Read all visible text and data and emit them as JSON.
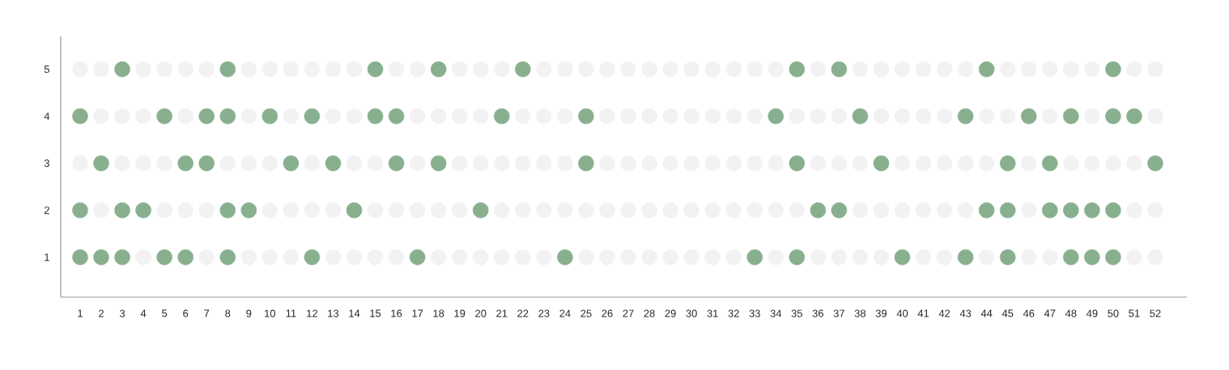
{
  "chart_data": {
    "type": "scatter",
    "marker": "circle",
    "grid": false,
    "xlim": [
      0.08,
      53.5
    ],
    "ylim": [
      0.15,
      5.7
    ],
    "xticks": [
      1,
      2,
      3,
      4,
      5,
      6,
      7,
      8,
      9,
      10,
      11,
      12,
      13,
      14,
      15,
      16,
      17,
      18,
      19,
      20,
      21,
      22,
      23,
      24,
      25,
      26,
      27,
      28,
      29,
      30,
      31,
      32,
      33,
      34,
      35,
      36,
      37,
      38,
      39,
      40,
      41,
      42,
      43,
      44,
      45,
      46,
      47,
      48,
      49,
      50,
      51,
      52
    ],
    "yticks": [
      1,
      2,
      3,
      4,
      5
    ],
    "series": [
      {
        "color": "#88b08e",
        "x": [
          3,
          8,
          15,
          18,
          22,
          35,
          37,
          44,
          50,
          1,
          5,
          7,
          8,
          10,
          12,
          15,
          16,
          21,
          25,
          34,
          38,
          43,
          46,
          48,
          50,
          51,
          2,
          6,
          7,
          11,
          13,
          16,
          18,
          25,
          35,
          39,
          45,
          47,
          52,
          1,
          3,
          4,
          8,
          9,
          14,
          20,
          36,
          37,
          44,
          45,
          47,
          48,
          49,
          50,
          1,
          2,
          3,
          5,
          6,
          8,
          12,
          17,
          24,
          33,
          35,
          40,
          43,
          45,
          48,
          49,
          50
        ],
        "values": [
          5,
          5,
          5,
          5,
          5,
          5,
          5,
          5,
          5,
          4,
          4,
          4,
          4,
          4,
          4,
          4,
          4,
          4,
          4,
          4,
          4,
          4,
          4,
          4,
          4,
          4,
          3,
          3,
          3,
          3,
          3,
          3,
          3,
          3,
          3,
          3,
          3,
          3,
          3,
          2,
          2,
          2,
          2,
          2,
          2,
          2,
          2,
          2,
          2,
          2,
          2,
          2,
          2,
          2,
          1,
          1,
          1,
          1,
          1,
          1,
          1,
          1,
          1,
          1,
          1,
          1,
          1,
          1,
          1,
          1,
          1
        ]
      },
      {
        "color": "#f2f2f2",
        "x": [
          4,
          7,
          9,
          10,
          11,
          13,
          14,
          15,
          16,
          18,
          19,
          20,
          21,
          22,
          23,
          25,
          26,
          27,
          28,
          29,
          30,
          31,
          32,
          34,
          36,
          37,
          38,
          39,
          41,
          42,
          44,
          46,
          47,
          51,
          52,
          2,
          5,
          6,
          7,
          10,
          11,
          12,
          13,
          15,
          16,
          17,
          18,
          19,
          21,
          22,
          23,
          24,
          25,
          26,
          27,
          28,
          29,
          30,
          31,
          32,
          33,
          34,
          35,
          38,
          39,
          40,
          41,
          42,
          43,
          46,
          51,
          52,
          1,
          3,
          4,
          5,
          8,
          9,
          10,
          12,
          14,
          15,
          17,
          19,
          20,
          21,
          22,
          23,
          24,
          26,
          27,
          28,
          29,
          30,
          31,
          32,
          33,
          34,
          36,
          37,
          38,
          40,
          41,
          42,
          43,
          44,
          46,
          48,
          49,
          50,
          51,
          2,
          3,
          4,
          6,
          9,
          11,
          13,
          14,
          17,
          18,
          19,
          20,
          22,
          23,
          24,
          26,
          27,
          28,
          29,
          30,
          31,
          32,
          33,
          35,
          36,
          37,
          39,
          40,
          41,
          42,
          44,
          45,
          47,
          49,
          52,
          1,
          2,
          4,
          5,
          6,
          7,
          9,
          10,
          11,
          12,
          13,
          14,
          16,
          17,
          19,
          20,
          21,
          23,
          24,
          25,
          26,
          27,
          28,
          29,
          30,
          31,
          32,
          33,
          34,
          36,
          38,
          39,
          40,
          41,
          42,
          43,
          45,
          46,
          47,
          48,
          49,
          51,
          52
        ],
        "values": [
          1,
          1,
          1,
          1,
          1,
          1,
          1,
          1,
          1,
          1,
          1,
          1,
          1,
          1,
          1,
          1,
          1,
          1,
          1,
          1,
          1,
          1,
          1,
          1,
          1,
          1,
          1,
          1,
          1,
          1,
          1,
          1,
          1,
          1,
          1,
          2,
          2,
          2,
          2,
          2,
          2,
          2,
          2,
          2,
          2,
          2,
          2,
          2,
          2,
          2,
          2,
          2,
          2,
          2,
          2,
          2,
          2,
          2,
          2,
          2,
          2,
          2,
          2,
          2,
          2,
          2,
          2,
          2,
          2,
          2,
          2,
          2,
          3,
          3,
          3,
          3,
          3,
          3,
          3,
          3,
          3,
          3,
          3,
          3,
          3,
          3,
          3,
          3,
          3,
          3,
          3,
          3,
          3,
          3,
          3,
          3,
          3,
          3,
          3,
          3,
          3,
          3,
          3,
          3,
          3,
          3,
          3,
          3,
          3,
          3,
          3,
          4,
          4,
          4,
          4,
          4,
          4,
          4,
          4,
          4,
          4,
          4,
          4,
          4,
          4,
          4,
          4,
          4,
          4,
          4,
          4,
          4,
          4,
          4,
          4,
          4,
          4,
          4,
          4,
          4,
          4,
          4,
          4,
          4,
          4,
          4,
          5,
          5,
          5,
          5,
          5,
          5,
          5,
          5,
          5,
          5,
          5,
          5,
          5,
          5,
          5,
          5,
          5,
          5,
          5,
          5,
          5,
          5,
          5,
          5,
          5,
          5,
          5,
          5,
          5,
          5,
          5,
          5,
          5,
          5,
          5,
          5,
          5,
          5,
          5,
          5,
          5,
          5,
          5
        ]
      }
    ]
  }
}
